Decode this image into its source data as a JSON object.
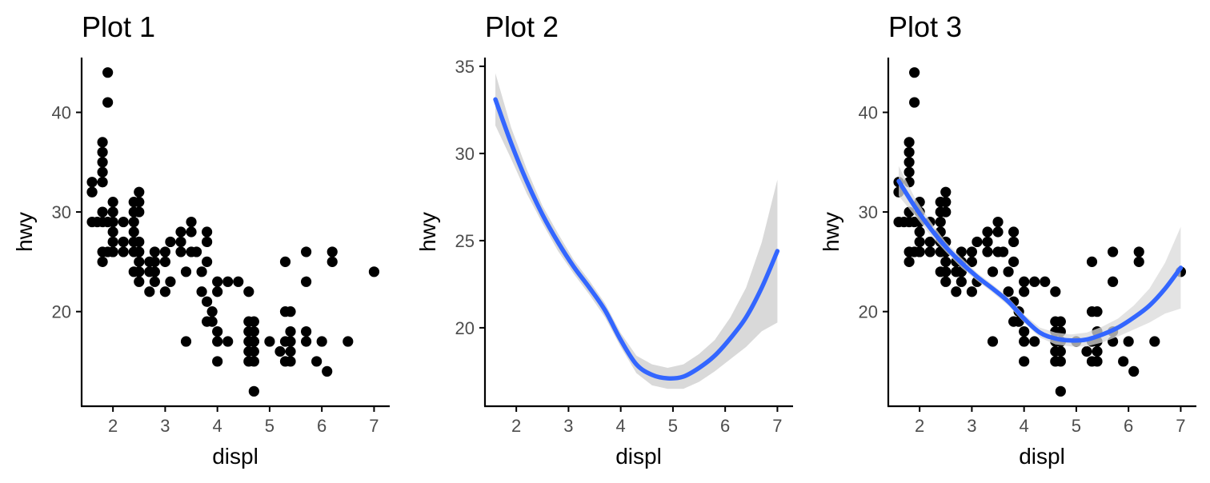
{
  "colors": {
    "point": "#000000",
    "smooth_line": "#3366FF",
    "ribbon": "#d9d9d9",
    "text": "#000000",
    "tick_text": "#4d4d4d"
  },
  "chart_data": [
    {
      "type": "scatter",
      "title": "Plot 1",
      "xlabel": "displ",
      "ylabel": "hwy",
      "xlim": [
        1.4,
        7.3
      ],
      "ylim": [
        10.5,
        45.5
      ],
      "x_ticks": [
        2,
        3,
        4,
        5,
        6,
        7
      ],
      "y_ticks": [
        20,
        30,
        40
      ],
      "x_tick_labels": [
        "2",
        "3",
        "4",
        "5",
        "6",
        "7"
      ],
      "y_tick_labels": [
        "20",
        "30",
        "40"
      ],
      "grid": false,
      "show_points": true,
      "show_smooth": false
    },
    {
      "type": "line",
      "title": "Plot 2",
      "xlabel": "displ",
      "ylabel": "hwy",
      "xlim": [
        1.4,
        7.3
      ],
      "ylim": [
        15.5,
        35.5
      ],
      "x_ticks": [
        2,
        3,
        4,
        5,
        6,
        7
      ],
      "y_ticks": [
        20,
        25,
        30,
        35
      ],
      "x_tick_labels": [
        "2",
        "3",
        "4",
        "5",
        "6",
        "7"
      ],
      "y_tick_labels": [
        "20",
        "25",
        "30",
        "35"
      ],
      "grid": false,
      "show_points": false,
      "show_smooth": true
    },
    {
      "type": "scatter",
      "title": "Plot 3",
      "xlabel": "displ",
      "ylabel": "hwy",
      "xlim": [
        1.4,
        7.3
      ],
      "ylim": [
        10.5,
        45.5
      ],
      "x_ticks": [
        2,
        3,
        4,
        5,
        6,
        7
      ],
      "y_ticks": [
        20,
        30,
        40
      ],
      "x_tick_labels": [
        "2",
        "3",
        "4",
        "5",
        "6",
        "7"
      ],
      "y_tick_labels": [
        "20",
        "30",
        "40"
      ],
      "grid": false,
      "show_points": true,
      "show_smooth": true
    }
  ],
  "points": {
    "x": [
      1.6,
      1.6,
      1.6,
      1.6,
      1.7,
      1.8,
      1.8,
      1.8,
      1.8,
      1.8,
      1.8,
      1.8,
      1.8,
      1.8,
      1.9,
      1.9,
      1.9,
      1.9,
      2.0,
      2.0,
      2.0,
      2.0,
      2.0,
      2.0,
      2.0,
      2.2,
      2.2,
      2.2,
      2.4,
      2.4,
      2.4,
      2.4,
      2.4,
      2.4,
      2.4,
      2.5,
      2.5,
      2.5,
      2.5,
      2.5,
      2.5,
      2.5,
      2.5,
      2.7,
      2.7,
      2.7,
      2.8,
      2.8,
      2.8,
      2.8,
      3.0,
      3.0,
      3.0,
      3.1,
      3.1,
      3.3,
      3.3,
      3.3,
      3.4,
      3.4,
      3.5,
      3.5,
      3.5,
      3.6,
      3.7,
      3.7,
      3.8,
      3.8,
      3.8,
      3.8,
      3.8,
      3.9,
      3.9,
      4.0,
      4.0,
      4.0,
      4.0,
      4.0,
      4.2,
      4.2,
      4.4,
      4.6,
      4.6,
      4.6,
      4.6,
      4.6,
      4.6,
      4.7,
      4.7,
      4.7,
      4.7,
      4.7,
      4.7,
      4.7,
      5.0,
      5.2,
      5.3,
      5.3,
      5.3,
      5.3,
      5.4,
      5.4,
      5.4,
      5.4,
      5.4,
      5.7,
      5.7,
      5.7,
      5.7,
      5.9,
      6.0,
      6.1,
      6.2,
      6.2,
      6.5,
      7.0
    ],
    "y": [
      33,
      32,
      29,
      32,
      29,
      25,
      26,
      29,
      30,
      35,
      36,
      37,
      34,
      33,
      44,
      41,
      29,
      26,
      31,
      30,
      28,
      27,
      26,
      29,
      26,
      29,
      26,
      27,
      28,
      27,
      26,
      24,
      30,
      31,
      29,
      32,
      31,
      30,
      26,
      25,
      24,
      23,
      27,
      25,
      24,
      22,
      26,
      24,
      23,
      25,
      26,
      25,
      22,
      27,
      23,
      28,
      27,
      26,
      24,
      17,
      29,
      28,
      26,
      26,
      24,
      22,
      28,
      27,
      25,
      21,
      19,
      19,
      20,
      22,
      17,
      18,
      23,
      15,
      23,
      17,
      23,
      19,
      18,
      16,
      15,
      22,
      17,
      17,
      16,
      12,
      15,
      18,
      19,
      17,
      17,
      16,
      17,
      15,
      20,
      25,
      18,
      16,
      15,
      20,
      17,
      26,
      23,
      18,
      17,
      15,
      17,
      14,
      26,
      25,
      17,
      24
    ]
  },
  "smooth": {
    "x": [
      1.6,
      1.9,
      2.2,
      2.5,
      2.8,
      3.1,
      3.4,
      3.7,
      4.0,
      4.3,
      4.6,
      4.9,
      5.2,
      5.5,
      5.8,
      6.1,
      6.4,
      6.7,
      7.0
    ],
    "y": [
      33.1,
      30.6,
      28.4,
      26.5,
      24.9,
      23.5,
      22.3,
      21.0,
      19.3,
      17.9,
      17.3,
      17.1,
      17.2,
      17.7,
      18.4,
      19.4,
      20.6,
      22.3,
      24.4
    ],
    "lower": [
      31.6,
      29.7,
      27.7,
      26.0,
      24.4,
      23.1,
      21.9,
      20.6,
      18.9,
      17.4,
      16.7,
      16.5,
      16.5,
      16.9,
      17.5,
      18.2,
      18.9,
      19.8,
      20.3
    ],
    "upper": [
      34.6,
      31.5,
      29.1,
      27.0,
      25.4,
      23.9,
      22.7,
      21.4,
      19.7,
      18.4,
      17.9,
      17.7,
      17.9,
      18.5,
      19.3,
      20.6,
      22.3,
      24.9,
      28.5
    ]
  }
}
